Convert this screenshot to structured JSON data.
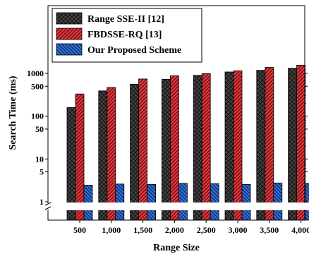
{
  "chart_data": {
    "type": "bar",
    "xlabel": "Range Size",
    "ylabel": "Search Time (ms)",
    "y_scale": "log",
    "y_axis_break": true,
    "categories": [
      "500",
      "1,000",
      "1,500",
      "2,000",
      "2,500",
      "3,000",
      "3,500",
      "4,000"
    ],
    "y_ticks": [
      {
        "value": 1,
        "label": "1"
      },
      {
        "value": 5,
        "label": "5"
      },
      {
        "value": 10,
        "label": "10"
      },
      {
        "value": 50,
        "label": "50"
      },
      {
        "value": 100,
        "label": "100"
      },
      {
        "value": 500,
        "label": "500"
      },
      {
        "value": 1000,
        "label": "1000"
      }
    ],
    "legend_position": "top-left",
    "series": [
      {
        "name": "Range SSE-II [12]",
        "color": "#444444",
        "pattern": "crosshatch",
        "values": [
          160,
          390,
          560,
          730,
          900,
          1080,
          1180,
          1320
        ]
      },
      {
        "name": "FBDSSE-RQ [13]",
        "color": "#e8343a",
        "pattern": "diagonal",
        "values": [
          330,
          470,
          740,
          880,
          990,
          1150,
          1380,
          1550
        ]
      },
      {
        "name": "Our Proposed Scheme",
        "color": "#2e6fd8",
        "pattern": "back-diagonal",
        "values": [
          2.45,
          2.6,
          2.55,
          2.7,
          2.65,
          2.55,
          2.75,
          2.7
        ]
      }
    ]
  }
}
